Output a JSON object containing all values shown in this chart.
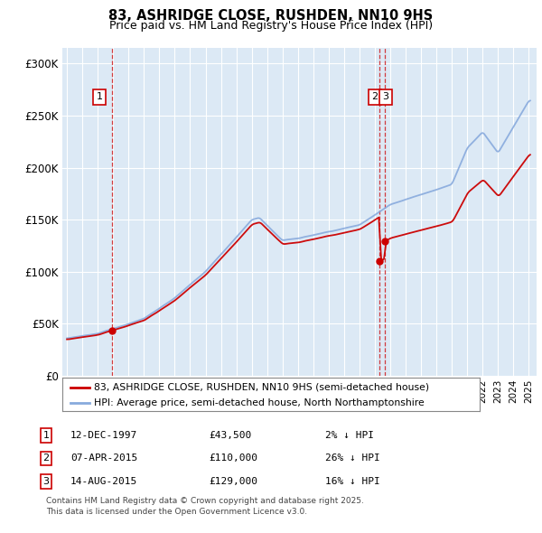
{
  "title": "83, ASHRIDGE CLOSE, RUSHDEN, NN10 9HS",
  "subtitle": "Price paid vs. HM Land Registry's House Price Index (HPI)",
  "ylabel_ticks": [
    "£0",
    "£50K",
    "£100K",
    "£150K",
    "£200K",
    "£250K",
    "£300K"
  ],
  "ylim": [
    0,
    315000
  ],
  "yticks": [
    0,
    50000,
    100000,
    150000,
    200000,
    250000,
    300000
  ],
  "xlim_start": 1994.7,
  "xlim_end": 2025.5,
  "bg_color": "#dce9f5",
  "transactions": [
    {
      "num": 1,
      "date": "12-DEC-1997",
      "year": 1997.95,
      "price": 43500,
      "pct": "2%",
      "dir": "↓"
    },
    {
      "num": 2,
      "date": "07-APR-2015",
      "year": 2015.27,
      "price": 110000,
      "pct": "26%",
      "dir": "↓"
    },
    {
      "num": 3,
      "date": "14-AUG-2015",
      "year": 2015.62,
      "price": 129000,
      "pct": "16%",
      "dir": "↓"
    }
  ],
  "legend_line1": "83, ASHRIDGE CLOSE, RUSHDEN, NN10 9HS (semi-detached house)",
  "legend_line2": "HPI: Average price, semi-detached house, North Northamptonshire",
  "footnote1": "Contains HM Land Registry data © Crown copyright and database right 2025.",
  "footnote2": "This data is licensed under the Open Government Licence v3.0.",
  "red_color": "#cc0000",
  "blue_color": "#88aadd",
  "marker_color": "#cc0000",
  "dashed_color": "#cc0000",
  "grid_color": "#ffffff"
}
